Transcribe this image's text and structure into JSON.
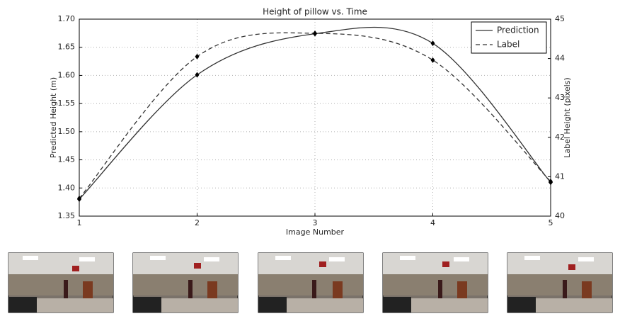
{
  "chart_data": {
    "type": "line",
    "title": "Height of pillow vs. Time",
    "x_label": "Image Number",
    "y_label": "Predicted Height (m)",
    "y2_label": "Label Height (pixels)",
    "x": [
      1,
      2,
      3,
      4,
      5
    ],
    "series": [
      {
        "name": "Prediction",
        "color": "#333333",
        "style": "solid",
        "values": [
          1.38,
          1.601,
          1.674,
          1.657,
          1.41
        ]
      },
      {
        "name": "Label",
        "color": "#333333",
        "style": "dashed",
        "axis": "y2",
        "values": [
          40.45,
          44.05,
          44.64,
          43.96,
          40.88
        ]
      }
    ],
    "xlim": [
      1,
      5
    ],
    "xticks": [
      1,
      2,
      3,
      4,
      5
    ],
    "ylim": [
      1.35,
      1.7
    ],
    "yticks": [
      1.35,
      {
        "value": 1.4,
        "label": "1.40"
      },
      1.45,
      {
        "value": 1.5,
        "label": "1.50"
      },
      1.55,
      {
        "value": 1.6,
        "label": "1.60"
      },
      1.65,
      {
        "value": 1.7,
        "label": "1.70"
      }
    ],
    "y2lim": [
      40,
      45
    ],
    "y2ticks": [
      40,
      41,
      42,
      43,
      44,
      45
    ],
    "grid": true,
    "legend": "upper right"
  }
}
